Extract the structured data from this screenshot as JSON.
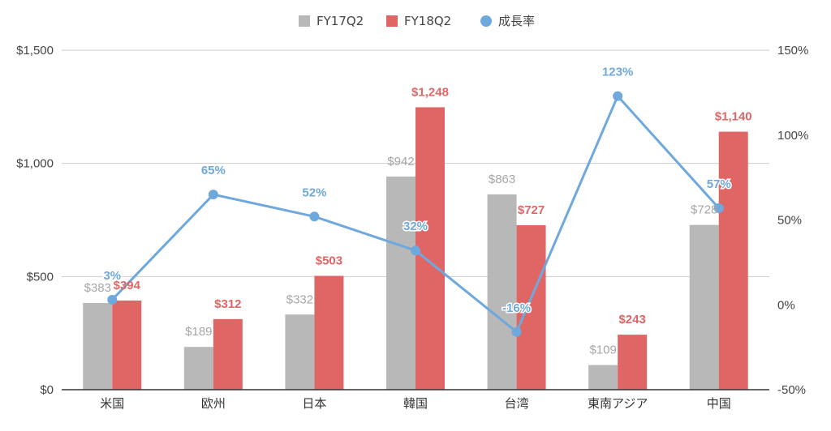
{
  "chart_data": {
    "type": "bar",
    "categories": [
      "米国",
      "欧州",
      "日本",
      "韓国",
      "台湾",
      "東南アジア",
      "中国"
    ],
    "series": [
      {
        "name": "FY17Q2",
        "kind": "bar",
        "axis": "left",
        "color": "#b8b8b8",
        "values": [
          383,
          189,
          332,
          942,
          863,
          109,
          728
        ],
        "labels": [
          "$383",
          "$189",
          "$332",
          "$942",
          "$863",
          "$109",
          "$728"
        ]
      },
      {
        "name": "FY18Q2",
        "kind": "bar",
        "axis": "left",
        "color": "#e06666",
        "values": [
          394,
          312,
          503,
          1248,
          727,
          243,
          1140
        ],
        "labels": [
          "$394",
          "$312",
          "$503",
          "$1,248",
          "$727",
          "$243",
          "$1,140"
        ]
      },
      {
        "name": "成長率",
        "kind": "line",
        "axis": "right",
        "color": "#6fa8dc",
        "values": [
          3,
          65,
          52,
          32,
          -16,
          123,
          57
        ],
        "labels": [
          "3%",
          "65%",
          "52%",
          "32%",
          "-16%",
          "123%",
          "57%"
        ]
      }
    ],
    "left_axis": {
      "ylim": [
        0,
        1500
      ],
      "ticks": [
        0,
        500,
        1000,
        1500
      ],
      "tick_labels": [
        "$0",
        "$500",
        "$1,000",
        "$1,500"
      ]
    },
    "right_axis": {
      "ylim": [
        -50,
        150
      ],
      "ticks": [
        -50,
        0,
        50,
        100,
        150
      ],
      "tick_labels": [
        "-50%",
        "0%",
        "50%",
        "100%",
        "150%"
      ]
    },
    "grid": true,
    "legend_position": "top-center"
  }
}
